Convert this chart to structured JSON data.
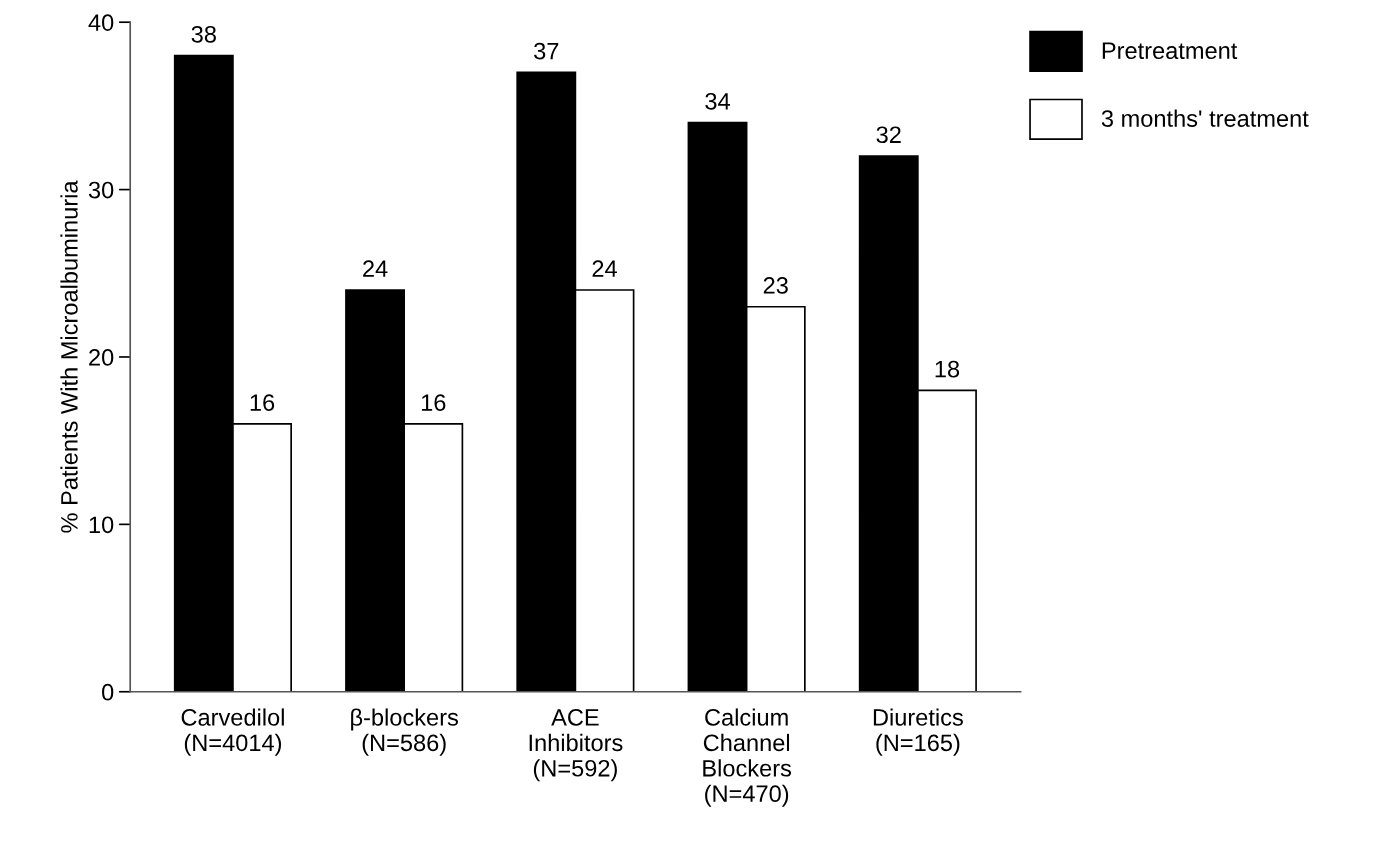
{
  "chart_data": {
    "type": "bar",
    "ylabel": "% Patients With Microalbuminuria",
    "categories": [
      "Carvedilol\n(N=4014)",
      "β-blockers\n(N=586)",
      "ACE\nInhibitors\n(N=592)",
      "Calcium\nChannel\nBlockers\n(N=470)",
      "Diuretics\n(N=165)"
    ],
    "series": [
      {
        "name": "Pretreatment",
        "color": "#000000",
        "values": [
          38,
          24,
          37,
          34,
          32
        ]
      },
      {
        "name": "3 months' treatment",
        "color": "#ffffff",
        "values": [
          16,
          16,
          24,
          23,
          18
        ]
      }
    ],
    "ylim": [
      0,
      40
    ],
    "yticks": [
      0,
      10,
      20,
      30,
      40
    ],
    "grid": false,
    "legend": "top right",
    "data_labels": true
  }
}
